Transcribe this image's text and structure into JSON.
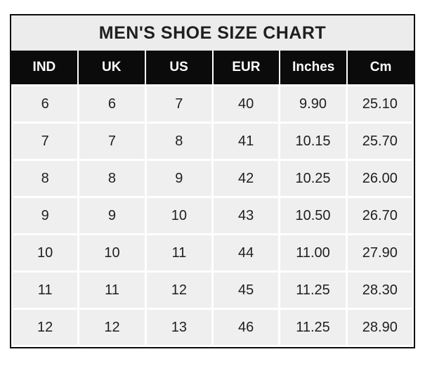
{
  "page": {
    "title_label": "MEN'S SHOE SIZE CHART"
  },
  "colors": {
    "border": "#0b0b0b",
    "title_bg": "#ececec",
    "header_bg": "#0b0b0b",
    "header_text": "#ffffff",
    "cell_bg": "#efefef",
    "cell_text": "#1f1f1f",
    "grid_line": "#ffffff"
  },
  "chart_data": {
    "type": "table",
    "title": "MEN'S SHOE SIZE CHART",
    "columns": [
      "IND",
      "UK",
      "US",
      "EUR",
      "Inches",
      "Cm"
    ],
    "rows": [
      [
        "6",
        "6",
        "7",
        "40",
        "9.90",
        "25.10"
      ],
      [
        "7",
        "7",
        "8",
        "41",
        "10.15",
        "25.70"
      ],
      [
        "8",
        "8",
        "9",
        "42",
        "10.25",
        "26.00"
      ],
      [
        "9",
        "9",
        "10",
        "43",
        "10.50",
        "26.70"
      ],
      [
        "10",
        "10",
        "11",
        "44",
        "11.00",
        "27.90"
      ],
      [
        "11",
        "11",
        "12",
        "45",
        "11.25",
        "28.30"
      ],
      [
        "12",
        "12",
        "13",
        "46",
        "11.25",
        "28.90"
      ]
    ]
  }
}
